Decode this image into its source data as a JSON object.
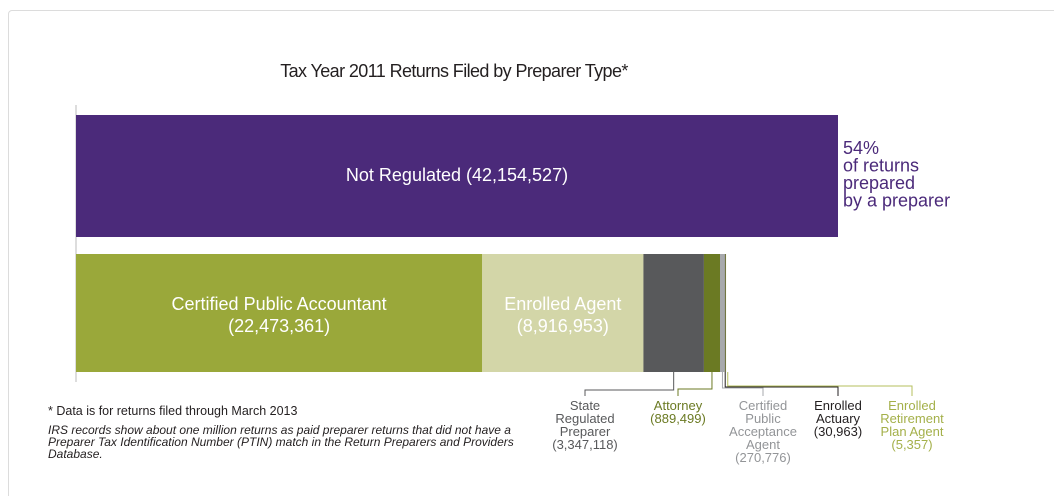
{
  "chart_data": {
    "type": "stacked-bar-horizontal",
    "title": "Tax Year 2011 Returns Filed by Preparer Type*",
    "annotation": [
      "54%",
      "of returns",
      "prepared",
      "by a preparer"
    ],
    "bars": [
      {
        "segments": [
          {
            "name": "Not Regulated",
            "value": 42154527,
            "value_label": "(42,154,527)",
            "color": "#4b2a7a",
            "label_color": "#ffffff"
          }
        ]
      },
      {
        "segments": [
          {
            "name": "Certified Public Accountant",
            "value": 22473361,
            "value_label": "(22,473,361)",
            "color": "#9aa83a",
            "label_color": "#ffffff"
          },
          {
            "name": "Enrolled Agent",
            "value": 8916953,
            "value_label": "(8,916,953)",
            "color": "#d3d6a8",
            "label_color": "#ffffff"
          },
          {
            "name": "State Regulated Preparer",
            "value": 3347118,
            "value_label": "(3,347,118)",
            "color": "#58595b",
            "label_color": "#58595b"
          },
          {
            "name": "Attorney",
            "value": 889499,
            "value_label": "(889,499)",
            "color": "#6b7a23",
            "label_color": "#6b7a23"
          },
          {
            "name": "Certified Public Acceptance Agent",
            "value": 270776,
            "value_label": "(270,776)",
            "color": "#a7a9ac",
            "label_color": "#939598"
          },
          {
            "name": "Enrolled Actuary",
            "value": 30963,
            "value_label": "(30,963)",
            "color": "#231f20",
            "label_color": "#231f20"
          },
          {
            "name": "Enrolled Retirement Plan Agent",
            "value": 5357,
            "value_label": "(5,357)",
            "color": "#b5bf5e",
            "label_color": "#a4b04a"
          }
        ]
      }
    ],
    "footnotes": [
      "* Data is for returns filed through March 2013",
      "IRS records show about one million returns as paid preparer returns that did not have a Preparer Tax Identification Number (PTIN) match in the Return Preparers and Providers Database."
    ]
  }
}
